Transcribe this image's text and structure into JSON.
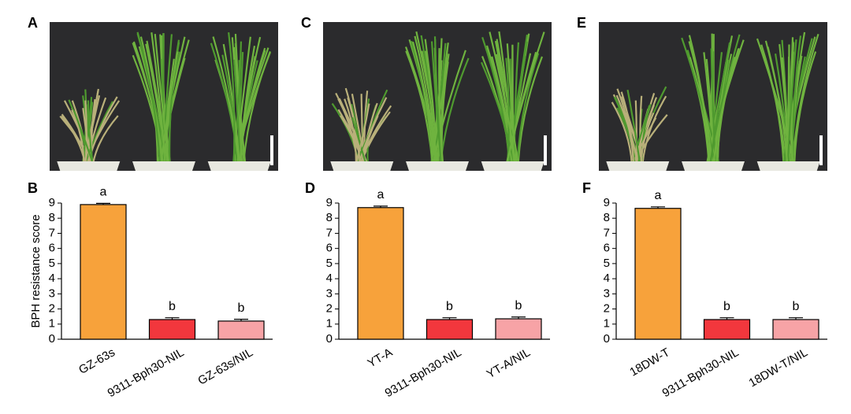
{
  "photos": [
    {
      "label": "A"
    },
    {
      "label": "C"
    },
    {
      "label": "E"
    }
  ],
  "chart_data": [
    {
      "type": "bar",
      "panel_label": "B",
      "y_label": "BPH resistance score",
      "categories": [
        "GZ-63s",
        "9311-Bph30-NIL",
        "GZ-63s/NIL"
      ],
      "values": [
        8.9,
        1.3,
        1.2
      ],
      "errors": [
        0.08,
        0.12,
        0.12
      ],
      "annotations": [
        "a",
        "b",
        "b"
      ],
      "colors": [
        "#f7a23b",
        "#f2373d",
        "#f7a3a6"
      ],
      "ylim": [
        0,
        9
      ],
      "yticks": [
        0,
        1,
        2,
        3,
        4,
        5,
        6,
        7,
        8,
        9
      ]
    },
    {
      "type": "bar",
      "panel_label": "D",
      "categories": [
        "YT-A",
        "9311-Bph30-NIL",
        "YT-A/NIL"
      ],
      "values": [
        8.7,
        1.3,
        1.35
      ],
      "errors": [
        0.1,
        0.12,
        0.12
      ],
      "annotations": [
        "a",
        "b",
        "b"
      ],
      "colors": [
        "#f7a23b",
        "#f2373d",
        "#f7a3a6"
      ],
      "ylim": [
        0,
        9
      ],
      "yticks": [
        0,
        1,
        2,
        3,
        4,
        5,
        6,
        7,
        8,
        9
      ]
    },
    {
      "type": "bar",
      "panel_label": "F",
      "categories": [
        "18DW-T",
        "9311-Bph30-NIL",
        "18DW-T/NIL"
      ],
      "values": [
        8.65,
        1.3,
        1.3
      ],
      "errors": [
        0.1,
        0.12,
        0.12
      ],
      "annotations": [
        "a",
        "b",
        "b"
      ],
      "colors": [
        "#f7a23b",
        "#f2373d",
        "#f7a3a6"
      ],
      "ylim": [
        0,
        9
      ],
      "yticks": [
        0,
        1,
        2,
        3,
        4,
        5,
        6,
        7,
        8,
        9
      ]
    }
  ]
}
